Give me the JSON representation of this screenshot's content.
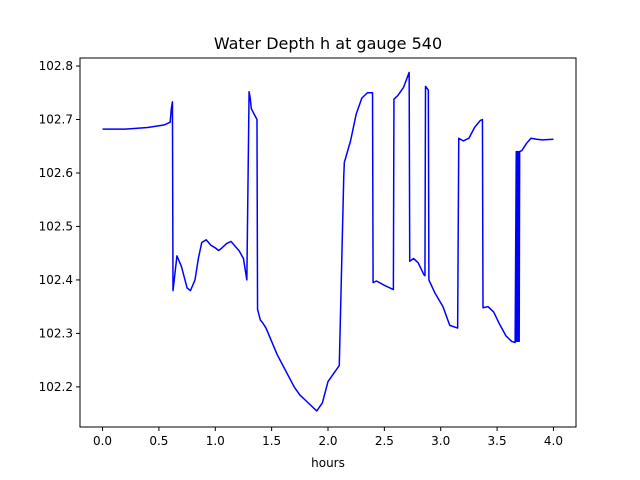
{
  "chart_data": {
    "type": "line",
    "title": "Water Depth h at gauge 540",
    "xlabel": "hours",
    "ylabel": "",
    "xlim": [
      -0.2,
      4.2
    ],
    "ylim": [
      102.125,
      102.815
    ],
    "xticks": [
      0.0,
      0.5,
      1.0,
      1.5,
      2.0,
      2.5,
      3.0,
      3.5,
      4.0
    ],
    "xtick_labels": [
      "0.0",
      "0.5",
      "1.0",
      "1.5",
      "2.0",
      "2.5",
      "3.0",
      "3.5",
      "4.0"
    ],
    "yticks": [
      102.2,
      102.3,
      102.4,
      102.5,
      102.6,
      102.7,
      102.8
    ],
    "ytick_labels": [
      "102.2",
      "102.3",
      "102.4",
      "102.5",
      "102.6",
      "102.7",
      "102.8"
    ],
    "grid": false,
    "series": [
      {
        "color": "#0000ff",
        "x": [
          0.0,
          0.2,
          0.4,
          0.55,
          0.6,
          0.61,
          0.62,
          0.625,
          0.66,
          0.7,
          0.75,
          0.78,
          0.82,
          0.85,
          0.88,
          0.92,
          0.96,
          1.0,
          1.03,
          1.06,
          1.1,
          1.14,
          1.18,
          1.21,
          1.25,
          1.28,
          1.3,
          1.31,
          1.32,
          1.37,
          1.375,
          1.4,
          1.42,
          1.45,
          1.5,
          1.55,
          1.6,
          1.65,
          1.7,
          1.75,
          1.8,
          1.85,
          1.9,
          1.95,
          2.0,
          2.05,
          2.1,
          2.14,
          2.145,
          2.2,
          2.25,
          2.3,
          2.35,
          2.395,
          2.4,
          2.43,
          2.5,
          2.58,
          2.585,
          2.62,
          2.67,
          2.72,
          2.725,
          2.76,
          2.8,
          2.85,
          2.86,
          2.865,
          2.89,
          2.895,
          2.95,
          3.02,
          3.08,
          3.15,
          3.16,
          3.2,
          3.25,
          3.3,
          3.35,
          3.37,
          3.375,
          3.42,
          3.47,
          3.52,
          3.58,
          3.63,
          3.66,
          3.67,
          3.672,
          3.676,
          3.68,
          3.684,
          3.688,
          3.692,
          3.696,
          3.7,
          3.72,
          3.76,
          3.8,
          3.85,
          3.9,
          4.0
        ],
        "y": [
          102.682,
          102.682,
          102.685,
          102.69,
          102.695,
          102.72,
          102.733,
          102.38,
          102.445,
          102.425,
          102.385,
          102.38,
          102.4,
          102.44,
          102.47,
          102.475,
          102.465,
          102.46,
          102.455,
          102.46,
          102.468,
          102.472,
          102.462,
          102.455,
          102.44,
          102.4,
          102.752,
          102.74,
          102.72,
          102.7,
          102.345,
          102.325,
          102.32,
          102.31,
          102.285,
          102.26,
          102.24,
          102.22,
          102.2,
          102.185,
          102.175,
          102.165,
          102.155,
          102.17,
          102.21,
          102.225,
          102.24,
          102.595,
          102.62,
          102.66,
          102.71,
          102.74,
          102.75,
          102.75,
          102.395,
          102.398,
          102.39,
          102.382,
          102.738,
          102.745,
          102.76,
          102.788,
          102.435,
          102.44,
          102.432,
          102.41,
          102.408,
          102.762,
          102.755,
          102.4,
          102.375,
          102.35,
          102.315,
          102.31,
          102.665,
          102.66,
          102.665,
          102.685,
          102.698,
          102.7,
          102.348,
          102.35,
          102.34,
          102.318,
          102.295,
          102.285,
          102.283,
          102.64,
          102.285,
          102.64,
          102.285,
          102.64,
          102.285,
          102.64,
          102.285,
          102.64,
          102.642,
          102.655,
          102.665,
          102.663,
          102.662,
          102.663
        ]
      }
    ]
  }
}
